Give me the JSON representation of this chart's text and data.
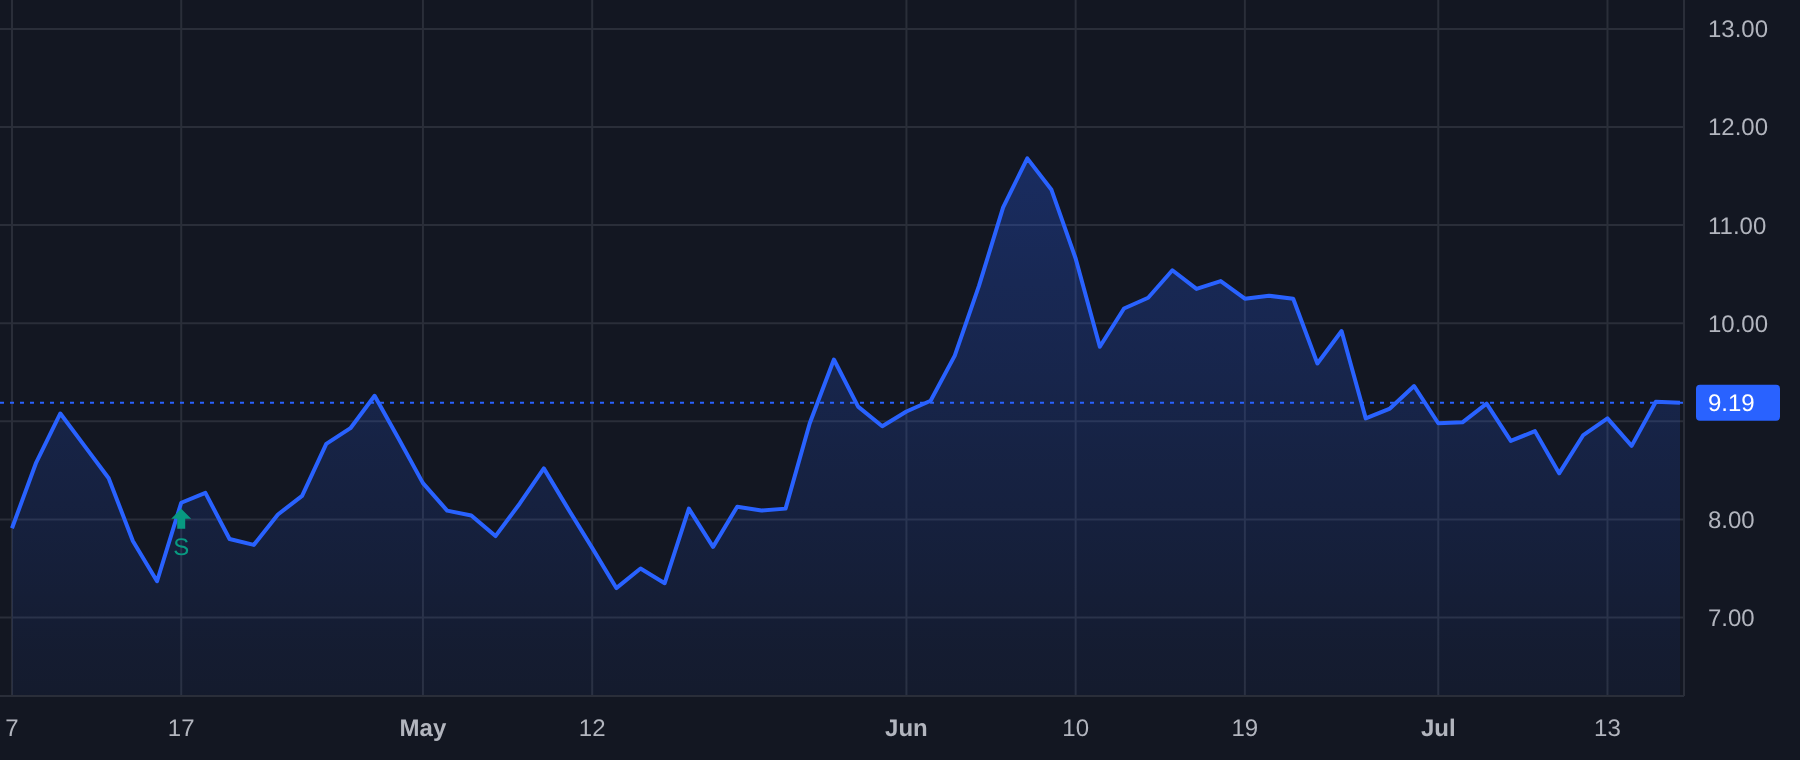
{
  "chart_data": {
    "type": "area",
    "categories": [
      "7",
      null,
      null,
      null,
      null,
      null,
      null,
      "17",
      null,
      null,
      null,
      null,
      null,
      null,
      null,
      null,
      null,
      "May",
      null,
      null,
      null,
      null,
      null,
      null,
      "12",
      null,
      null,
      null,
      null,
      null,
      null,
      null,
      null,
      null,
      null,
      null,
      null,
      "Jun",
      null,
      null,
      null,
      null,
      null,
      null,
      "10",
      null,
      null,
      null,
      null,
      null,
      null,
      "19",
      null,
      null,
      null,
      null,
      null,
      null,
      null,
      "Jul",
      null,
      null,
      null,
      null,
      null,
      null,
      "13",
      null,
      null,
      null
    ],
    "series": [
      {
        "color": "#2962ff",
        "values": [
          7.91,
          8.58,
          9.08,
          8.75,
          8.42,
          7.78,
          7.37,
          8.17,
          8.27,
          7.8,
          7.74,
          8.05,
          8.24,
          8.77,
          8.93,
          9.26,
          8.82,
          8.37,
          8.09,
          8.04,
          7.83,
          8.16,
          8.52,
          8.11,
          7.71,
          7.3,
          7.5,
          7.35,
          8.11,
          7.72,
          8.13,
          8.09,
          8.11,
          8.98,
          9.63,
          9.15,
          8.95,
          9.1,
          9.21,
          9.67,
          10.38,
          11.18,
          11.68,
          11.36,
          10.66,
          9.76,
          10.15,
          10.26,
          10.54,
          10.35,
          10.43,
          10.25,
          10.28,
          10.25,
          9.59,
          9.92,
          9.03,
          9.13,
          9.36,
          8.98,
          8.99,
          9.18,
          8.8,
          8.9,
          8.47,
          8.86,
          9.03,
          8.75,
          9.2,
          9.19
        ]
      }
    ],
    "ylim": [
      6.2,
      13.05
    ],
    "yticks": [
      {
        "value": 7,
        "label": "7.00"
      },
      {
        "value": 8,
        "label": "8.00"
      },
      {
        "value": 9,
        "label": null
      },
      {
        "value": 10,
        "label": "10.00"
      },
      {
        "value": 11,
        "label": "11.00"
      },
      {
        "value": 12,
        "label": "12.00"
      },
      {
        "value": 13,
        "label": "13.00"
      }
    ],
    "grid": true,
    "line_style": "solid",
    "ref_lines": [
      {
        "axis": "y",
        "value": 9.19,
        "label": "9.19",
        "color": "#2962ff",
        "line_style": "dotted"
      }
    ],
    "annotations": [
      {
        "text": "S",
        "x": "17",
        "y": 8.17
      }
    ]
  }
}
